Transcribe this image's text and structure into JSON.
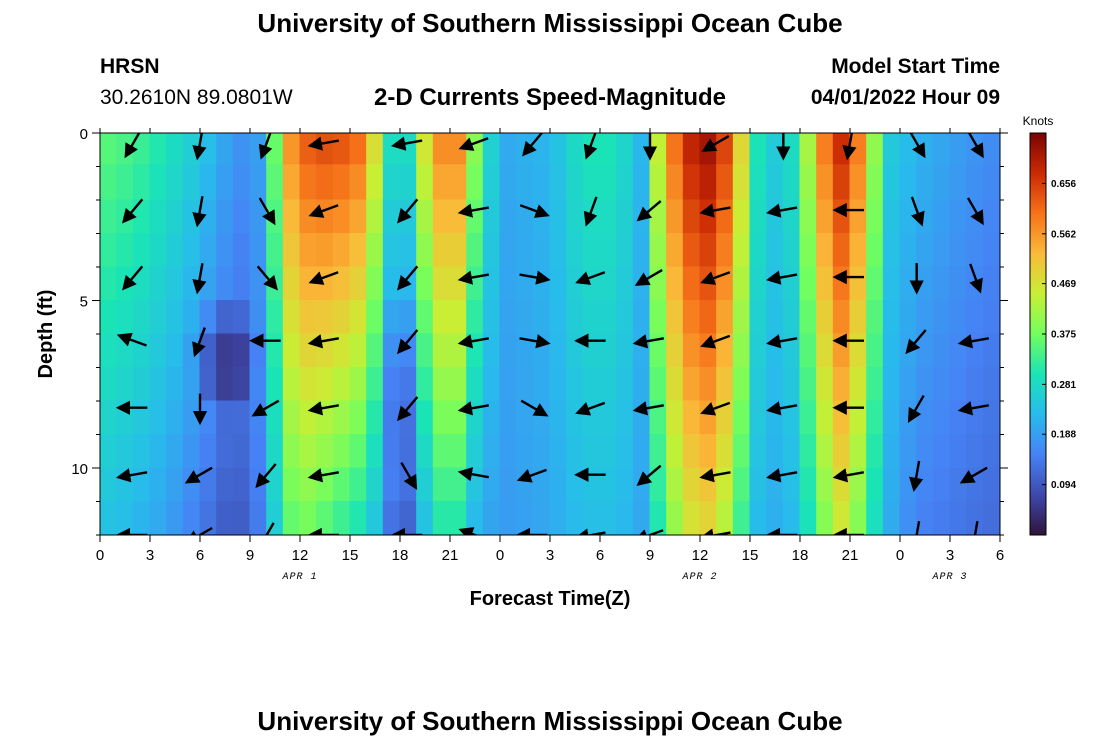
{
  "header": {
    "title": "University of Southern Mississippi Ocean Cube",
    "station": "HRSN",
    "coordinates": "30.2610N  89.0801W",
    "subtitle": "2-D Currents Speed-Magnitude",
    "model_start_label": "Model Start Time",
    "model_start_value": "04/01/2022 Hour 09"
  },
  "footer": {
    "title": "University of Southern Mississippi Ocean Cube"
  },
  "chart_data": {
    "type": "heatmap",
    "xlabel": "Forecast Time(Z)",
    "ylabel": "Depth (ft)",
    "colorbar_label": "Knots",
    "colorbar_ticks": [
      0.094,
      0.188,
      0.281,
      0.375,
      0.469,
      0.562,
      0.656
    ],
    "colorbar_tick_labels": [
      "0.094",
      "0.188",
      "0.281",
      "0.375",
      "0.469",
      "0.562",
      "0.656"
    ],
    "value_range": [
      0.0,
      0.75
    ],
    "x_range_hours": [
      0,
      54
    ],
    "y_range_ft": [
      0,
      12
    ],
    "x_ticks_hours": [
      0,
      3,
      6,
      9,
      12,
      15,
      18,
      21,
      24,
      27,
      30,
      33,
      36,
      39,
      42,
      45,
      48,
      51,
      54
    ],
    "x_tick_labels": [
      "0",
      "3",
      "6",
      "9",
      "12",
      "15",
      "18",
      "21",
      "0",
      "3",
      "6",
      "9",
      "12",
      "15",
      "18",
      "21",
      "0",
      "3",
      "6"
    ],
    "y_ticks": [
      0,
      5,
      10
    ],
    "y_tick_labels": [
      "0",
      "5",
      "10"
    ],
    "date_labels": [
      {
        "text": "APR 1",
        "hour": 12
      },
      {
        "text": "APR 2",
        "hour": 36
      },
      {
        "text": "APR 3",
        "hour": 51
      }
    ],
    "depths_ft": [
      0.4,
      1.5,
      2.5,
      3.5,
      4.5,
      5.5,
      6.5,
      7.5,
      8.5,
      9.5,
      10.5,
      11.5
    ],
    "time_profile": [
      {
        "hour": 0,
        "top": 0.36,
        "bottom": 0.24
      },
      {
        "hour": 2,
        "top": 0.34,
        "bottom": 0.22
      },
      {
        "hour": 4,
        "top": 0.3,
        "bottom": 0.19
      },
      {
        "hour": 6,
        "top": 0.25,
        "bottom": 0.14
      },
      {
        "hour": 7.5,
        "top": 0.2,
        "bottom": 0.1
      },
      {
        "hour": 9,
        "top": 0.16,
        "bottom": 0.1
      },
      {
        "hour": 10,
        "top": 0.22,
        "bottom": 0.18
      },
      {
        "hour": 11,
        "top": 0.52,
        "bottom": 0.33
      },
      {
        "hour": 12,
        "top": 0.62,
        "bottom": 0.38
      },
      {
        "hour": 14,
        "top": 0.65,
        "bottom": 0.33
      },
      {
        "hour": 16,
        "top": 0.6,
        "bottom": 0.28
      },
      {
        "hour": 17,
        "top": 0.36,
        "bottom": 0.2
      },
      {
        "hour": 18,
        "top": 0.22,
        "bottom": 0.05
      },
      {
        "hour": 19,
        "top": 0.36,
        "bottom": 0.16
      },
      {
        "hour": 20,
        "top": 0.58,
        "bottom": 0.3
      },
      {
        "hour": 21.5,
        "top": 0.58,
        "bottom": 0.3
      },
      {
        "hour": 22.5,
        "top": 0.4,
        "bottom": 0.22
      },
      {
        "hour": 24,
        "top": 0.2,
        "bottom": 0.18
      },
      {
        "hour": 27,
        "top": 0.22,
        "bottom": 0.2
      },
      {
        "hour": 29,
        "top": 0.3,
        "bottom": 0.23
      },
      {
        "hour": 31,
        "top": 0.3,
        "bottom": 0.23
      },
      {
        "hour": 32.5,
        "top": 0.22,
        "bottom": 0.2
      },
      {
        "hour": 33.5,
        "top": 0.45,
        "bottom": 0.3
      },
      {
        "hour": 35,
        "top": 0.68,
        "bottom": 0.45
      },
      {
        "hour": 36.5,
        "top": 0.72,
        "bottom": 0.48
      },
      {
        "hour": 38,
        "top": 0.62,
        "bottom": 0.4
      },
      {
        "hour": 39,
        "top": 0.36,
        "bottom": 0.25
      },
      {
        "hour": 40,
        "top": 0.24,
        "bottom": 0.2
      },
      {
        "hour": 42,
        "top": 0.3,
        "bottom": 0.23
      },
      {
        "hour": 43,
        "top": 0.55,
        "bottom": 0.35
      },
      {
        "hour": 44.5,
        "top": 0.68,
        "bottom": 0.45
      },
      {
        "hour": 46,
        "top": 0.55,
        "bottom": 0.35
      },
      {
        "hour": 47,
        "top": 0.26,
        "bottom": 0.22
      },
      {
        "hour": 49,
        "top": 0.22,
        "bottom": 0.15
      },
      {
        "hour": 52,
        "top": 0.18,
        "bottom": 0.13
      },
      {
        "hour": 54,
        "top": 0.16,
        "bottom": 0.12
      }
    ],
    "anomalies": [
      {
        "hour": 7.5,
        "depth_ft": 6.8,
        "radius_hours": 2.2,
        "radius_ft": 1.8,
        "delta": -0.09
      },
      {
        "hour": 18,
        "depth_ft": 7.5,
        "radius_hours": 0.8,
        "radius_ft": 3.5,
        "delta": -0.06
      }
    ],
    "vector_grid": {
      "hours": [
        2,
        6,
        10,
        13.5,
        18.5,
        22.5,
        26,
        29.5,
        33,
        37,
        41,
        45,
        49,
        52.5
      ],
      "depths_ft": [
        0.3,
        2.3,
        4.3,
        6.2,
        8.2,
        10.2,
        12.0
      ],
      "directions_deg": [
        [
          240,
          260,
          250,
          190,
          190,
          200,
          230,
          250,
          270,
          210,
          270,
          260,
          300,
          300
        ],
        [
          230,
          260,
          300,
          200,
          230,
          190,
          340,
          250,
          220,
          190,
          190,
          180,
          290,
          300
        ],
        [
          230,
          260,
          310,
          200,
          230,
          190,
          350,
          200,
          210,
          200,
          190,
          180,
          270,
          290
        ],
        [
          160,
          250,
          180,
          190,
          230,
          190,
          350,
          180,
          190,
          200,
          190,
          180,
          230,
          190
        ],
        [
          180,
          270,
          210,
          190,
          230,
          190,
          330,
          200,
          190,
          200,
          190,
          180,
          240,
          190
        ],
        [
          190,
          210,
          230,
          190,
          300,
          170,
          200,
          180,
          220,
          190,
          190,
          190,
          260,
          210
        ],
        [
          180,
          210,
          240,
          180,
          180,
          160,
          180,
          190,
          200,
          190,
          180,
          180,
          260,
          260
        ]
      ]
    }
  }
}
